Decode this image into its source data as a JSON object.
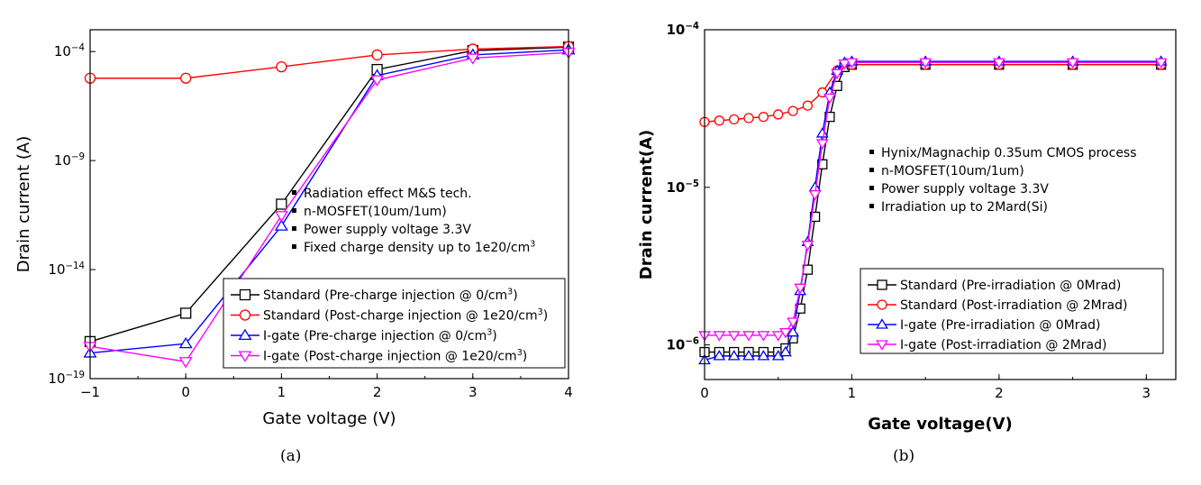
{
  "chart_data": [
    {
      "type": "line",
      "caption": "(a)",
      "xlabel": "Gate voltage (V)",
      "ylabel": "Drain current (A)",
      "xlim": [
        -1,
        4
      ],
      "ylim_log10": [
        -19,
        -3
      ],
      "yscale": "log",
      "xticks": [
        "-1",
        "0",
        "1",
        "2",
        "3",
        "4"
      ],
      "yticks": [
        {
          "base": "10",
          "exp": "-4",
          "value": 0.0001
        },
        {
          "base": "10",
          "exp": "-9",
          "value": 1e-09
        },
        {
          "base": "10",
          "exp": "-14",
          "value": 1e-14
        },
        {
          "base": "10",
          "exp": "-19",
          "value": 1e-19
        }
      ],
      "annotations": [
        {
          "text": "Radiation effect M&S tech."
        },
        {
          "text": "n-MOSFET(10um/1um)"
        },
        {
          "text": "Power supply voltage 3.3V"
        },
        {
          "text": "Fixed charge density up to 1e20/cm",
          "sup": "3"
        }
      ],
      "legend_placement": "bottom-right",
      "x": [
        -1,
        0,
        1,
        2,
        3,
        4
      ],
      "series": [
        {
          "name": "Standard (Pre-charge injection @ 0/cm",
          "sup": "3",
          "tail": ")",
          "color": "#000000",
          "marker": "square",
          "values": [
            5e-18,
            1e-16,
            1e-11,
            1.5e-05,
            0.00011,
            0.00016
          ]
        },
        {
          "name": "Standard (Post-charge injection @ 1e20/cm",
          "sup": "3",
          "tail": ")",
          "color": "#ff0000",
          "marker": "circle",
          "values": [
            6e-06,
            6e-06,
            2e-05,
            7e-05,
            0.00013,
            0.00017
          ]
        },
        {
          "name": "I-gate (Pre-charge injection @ 0/cm",
          "sup": "3",
          "tail": ")",
          "color": "#0000ff",
          "marker": "triangle-up",
          "values": [
            1.5e-18,
            4e-18,
            1e-12,
            8e-06,
            7e-05,
            0.00012
          ]
        },
        {
          "name": "I-gate (Post-charge injection @ 1e20/cm",
          "sup": "3",
          "tail": ")",
          "color": "#ff00ff",
          "marker": "triangle-down",
          "values": [
            3e-18,
            6e-19,
            3e-12,
            5e-06,
            5e-05,
            9e-05
          ]
        }
      ]
    },
    {
      "type": "line",
      "caption": "(b)",
      "xlabel": "Gate voltage(V)",
      "ylabel": "Drain current(A)",
      "xlim": [
        0,
        3.2
      ],
      "ylim_log10": [
        -6.22,
        -4
      ],
      "yscale": "log",
      "xticks": [
        "0",
        "1",
        "2",
        "3"
      ],
      "yticks": [
        {
          "base": "10",
          "exp": "-4",
          "value": 0.0001
        },
        {
          "base": "10",
          "exp": "-5",
          "value": 1e-05
        },
        {
          "base": "10",
          "exp": "-6",
          "value": 1e-06
        }
      ],
      "annotations": [
        {
          "text": "Hynix/Magnachip 0.35um CMOS process"
        },
        {
          "text": "n-MOSFET(10um/1um)"
        },
        {
          "text": "Power supply voltage 3.3V"
        },
        {
          "text": "Irradiation up to 2Mard(Si)"
        }
      ],
      "legend_placement": "bottom-right",
      "series": [
        {
          "name": "Standard (Pre-irradiation @ 0Mrad)",
          "color": "#000000",
          "marker": "square",
          "x": [
            0,
            0.1,
            0.2,
            0.3,
            0.4,
            0.5,
            0.55,
            0.6,
            0.65,
            0.7,
            0.75,
            0.8,
            0.85,
            0.9,
            0.95,
            1.0,
            1.5,
            2.0,
            2.5,
            3.1
          ],
          "values": [
            9e-07,
            9e-07,
            9e-07,
            9e-07,
            9e-07,
            9e-07,
            9.5e-07,
            1.1e-06,
            1.7e-06,
            3e-06,
            6.5e-06,
            1.4e-05,
            2.8e-05,
            4.4e-05,
            5.8e-05,
            6e-05,
            6e-05,
            6e-05,
            6e-05,
            6e-05
          ]
        },
        {
          "name": "Standard (Post-irradiation @ 2Mrad)",
          "color": "#ff0000",
          "marker": "circle",
          "x": [
            0,
            0.1,
            0.2,
            0.3,
            0.4,
            0.5,
            0.6,
            0.7,
            0.8,
            0.9,
            1.0,
            1.5,
            2.0,
            2.5,
            3.1
          ],
          "values": [
            2.6e-05,
            2.65e-05,
            2.7e-05,
            2.75e-05,
            2.8e-05,
            2.9e-05,
            3.05e-05,
            3.3e-05,
            4e-05,
            5.5e-05,
            6e-05,
            6e-05,
            6e-05,
            6e-05,
            6e-05
          ]
        },
        {
          "name": "I-gate (Pre-irradiation @ 0Mrad)",
          "color": "#0000ff",
          "marker": "triangle-up",
          "x": [
            0,
            0.1,
            0.2,
            0.3,
            0.4,
            0.5,
            0.55,
            0.6,
            0.65,
            0.7,
            0.75,
            0.8,
            0.85,
            0.9,
            0.95,
            1.0,
            1.5,
            2.0,
            2.5,
            3.1
          ],
          "values": [
            8e-07,
            8.5e-07,
            8.5e-07,
            8.5e-07,
            8.5e-07,
            8.5e-07,
            9e-07,
            1.2e-06,
            2.2e-06,
            4.5e-06,
            1e-05,
            2.2e-05,
            4e-05,
            5.5e-05,
            6.2e-05,
            6.3e-05,
            6.3e-05,
            6.3e-05,
            6.3e-05,
            6.3e-05
          ]
        },
        {
          "name": "I-gate (Post-irradiation @ 2Mrad)",
          "color": "#ff00ff",
          "marker": "triangle-down",
          "x": [
            0,
            0.1,
            0.2,
            0.3,
            0.4,
            0.5,
            0.55,
            0.6,
            0.65,
            0.7,
            0.75,
            0.8,
            0.85,
            0.9,
            0.95,
            1.0,
            1.5,
            2.0,
            2.5,
            3.1
          ],
          "values": [
            1.15e-06,
            1.15e-06,
            1.15e-06,
            1.15e-06,
            1.15e-06,
            1.15e-06,
            1.2e-06,
            1.4e-06,
            2.3e-06,
            4.3e-06,
            9e-06,
            1.9e-05,
            3.7e-05,
            5.3e-05,
            6.1e-05,
            6.2e-05,
            6.2e-05,
            6.2e-05,
            6.2e-05,
            6.2e-05
          ]
        }
      ]
    }
  ]
}
